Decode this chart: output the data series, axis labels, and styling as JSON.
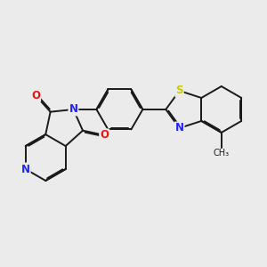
{
  "bg_color": "#ebebeb",
  "bond_color": "#1a1a1a",
  "bond_width": 1.4,
  "dbo": 0.055,
  "atom_colors": {
    "N": "#2222ff",
    "O": "#ee1111",
    "S": "#cccc00",
    "C": "#1a1a1a"
  },
  "font_size": 8.5,
  "methyl_label": "CH₃"
}
